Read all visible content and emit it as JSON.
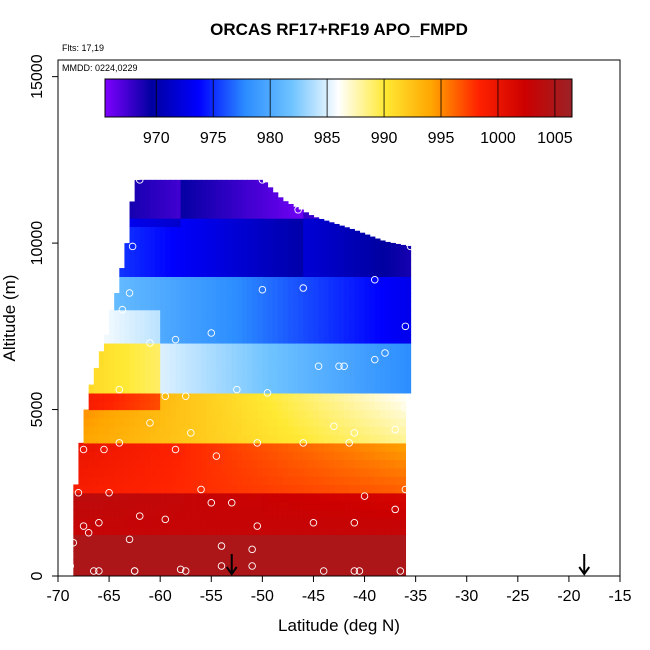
{
  "chart_data": {
    "type": "heatmap",
    "title": "ORCAS RF17+RF19 APO_FMPD",
    "annotations": {
      "flights": "Flts: 17,19",
      "dates": "MMDD: 0224,0229"
    },
    "xlabel": "Latitude (deg N)",
    "ylabel": "Altitude (m)",
    "xlim": [
      -70,
      -15
    ],
    "ylim": [
      0,
      15500
    ],
    "x_ticks": [
      -70,
      -65,
      -60,
      -55,
      -50,
      -45,
      -40,
      -35,
      -30,
      -25,
      -20,
      -15
    ],
    "x_tick_labels": [
      "-70",
      "-65",
      "-60",
      "-55",
      "-50",
      "-45",
      "-40",
      "-35",
      "-30",
      "-25",
      "-20",
      "-15"
    ],
    "y_ticks": [
      0,
      5000,
      10000,
      15000
    ],
    "y_tick_labels": [
      "0",
      "5000",
      "10000",
      "15000"
    ],
    "colorbar": {
      "range": [
        965.5,
        1006.5
      ],
      "ticks": [
        970,
        975,
        980,
        985,
        990,
        995,
        1000,
        1005
      ],
      "tick_labels": [
        "970",
        "975",
        "980",
        "985",
        "990",
        "995",
        "1000",
        "1005"
      ],
      "colors": [
        "#7f00ff",
        "#0000a0",
        "#0000ff",
        "#2b8cff",
        "#6ec3ff",
        "#ffffff",
        "#ffe933",
        "#ffa500",
        "#ff2200",
        "#cc0000",
        "#9b2226"
      ]
    },
    "curtain_boundary": {
      "top": [
        [
          -68.5,
          10300
        ],
        [
          -67,
          11000
        ],
        [
          -65.5,
          11800
        ],
        [
          -62,
          11900
        ],
        [
          -50,
          11900
        ],
        [
          -48,
          11300
        ],
        [
          -45,
          10800
        ],
        [
          -41,
          10400
        ],
        [
          -38,
          10050
        ],
        [
          -35.5,
          9900
        ]
      ],
      "bottom": [
        [
          -35.5,
          0
        ],
        [
          -68.5,
          0
        ]
      ],
      "left": [
        [
          -68.5,
          10300
        ],
        [
          -68.5,
          0
        ]
      ],
      "right": [
        [
          -35.5,
          9900
        ],
        [
          -35.5,
          0
        ]
      ]
    },
    "sample_points": [
      [
        -62,
        11900
      ],
      [
        -50,
        11900
      ],
      [
        -62.7,
        9900
      ],
      [
        -46.5,
        11000
      ],
      [
        -35.5,
        9900
      ],
      [
        -63,
        8500
      ],
      [
        -63.7,
        8000
      ],
      [
        -39,
        8900
      ],
      [
        -50,
        8600
      ],
      [
        -46,
        8650
      ],
      [
        -36,
        7500
      ],
      [
        -58.5,
        7100
      ],
      [
        -55,
        7300
      ],
      [
        -61,
        7000
      ],
      [
        -38,
        6700
      ],
      [
        -39,
        6500
      ],
      [
        -44.5,
        6300
      ],
      [
        -42.5,
        6300
      ],
      [
        -42,
        6300
      ],
      [
        -64,
        5600
      ],
      [
        -52.5,
        5600
      ],
      [
        -59.5,
        5400
      ],
      [
        -57.5,
        5400
      ],
      [
        -49.5,
        5500
      ],
      [
        -36,
        5050
      ],
      [
        -61,
        4600
      ],
      [
        -57,
        4300
      ],
      [
        -41,
        4300
      ],
      [
        -37,
        4400
      ],
      [
        -43,
        4500
      ],
      [
        -64,
        4000
      ],
      [
        -58.5,
        3800
      ],
      [
        -67.5,
        3800
      ],
      [
        -54.5,
        3600
      ],
      [
        -41.5,
        4000
      ],
      [
        -46,
        4000
      ],
      [
        -50.5,
        4000
      ],
      [
        -65.5,
        3800
      ],
      [
        -36,
        2600
      ],
      [
        -56,
        2600
      ],
      [
        -65,
        2500
      ],
      [
        -68,
        2500
      ],
      [
        -55,
        2200
      ],
      [
        -53,
        2200
      ],
      [
        -40,
        2400
      ],
      [
        -62,
        1800
      ],
      [
        -59.5,
        1700
      ],
      [
        -66,
        1600
      ],
      [
        -37,
        2000
      ],
      [
        -41,
        1600
      ],
      [
        -45,
        1600
      ],
      [
        -67.5,
        1500
      ],
      [
        -67,
        1300
      ],
      [
        -50.5,
        1500
      ],
      [
        -63,
        1100
      ],
      [
        -68.5,
        1000
      ],
      [
        -54,
        900
      ],
      [
        -51,
        800
      ],
      [
        -54,
        300
      ],
      [
        -51,
        300
      ],
      [
        -58,
        200
      ],
      [
        -62.5,
        150
      ],
      [
        -66.5,
        150
      ],
      [
        -68.8,
        300
      ],
      [
        -36.5,
        150
      ],
      [
        -44,
        150
      ],
      [
        -41,
        150
      ],
      [
        -66,
        150
      ],
      [
        -57.5,
        150
      ],
      [
        -62.5,
        150
      ],
      [
        -40.5,
        150
      ]
    ],
    "markers": [
      {
        "symbol": "down-arrow",
        "x": -53
      },
      {
        "symbol": "down-arrow",
        "x": -18.5
      }
    ]
  }
}
